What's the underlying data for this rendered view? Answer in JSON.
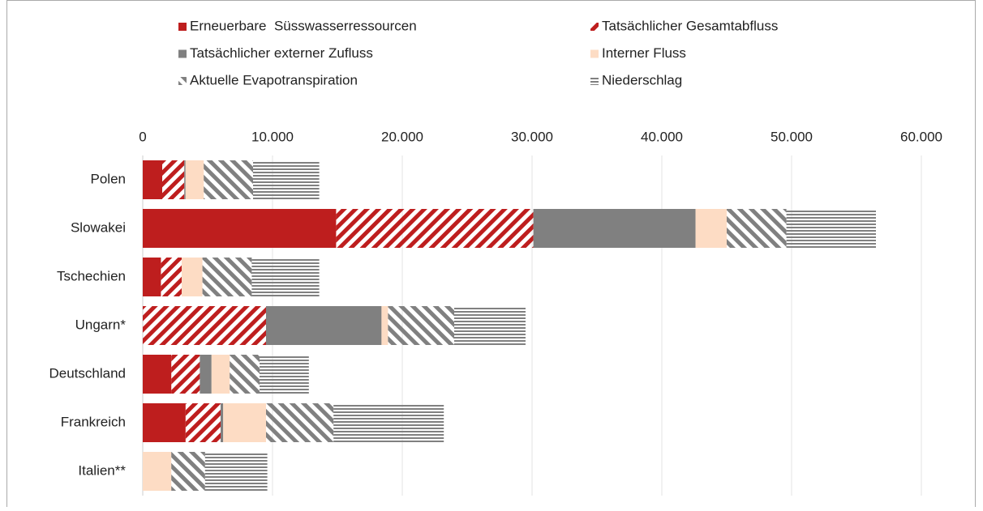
{
  "chart_data": {
    "type": "stacked-barh",
    "categories": [
      "Polen",
      "Slowakei",
      "Tschechien",
      "Ungarn*",
      "Deutschland",
      "Frankreich",
      "Italien**"
    ],
    "series": [
      {
        "name": "Erneuerbare  Süsswasserressourcen",
        "color": "#be1e1e",
        "pattern": "solid",
        "values": [
          1500,
          14900,
          1400,
          0,
          2200,
          3300,
          0
        ]
      },
      {
        "name": "Tatsächlicher Gesamtabfluss",
        "color": "#be1e1e",
        "pattern": "diagonal-up",
        "values": [
          1700,
          15200,
          1600,
          9500,
          2200,
          2700,
          0
        ]
      },
      {
        "name": "Tatsächlicher externer Zufluss",
        "color": "#808080",
        "pattern": "solid",
        "values": [
          100,
          12500,
          0,
          8900,
          900,
          200,
          0
        ]
      },
      {
        "name": "Interner Fluss",
        "color": "#fddcc4",
        "pattern": "solid",
        "values": [
          1400,
          2400,
          1600,
          500,
          1400,
          3300,
          2200
        ]
      },
      {
        "name": "Aktuelle Evapotranspiration",
        "color": "#808080",
        "pattern": "diagonal-down",
        "values": [
          3800,
          4600,
          3800,
          5100,
          2300,
          5200,
          2600
        ]
      },
      {
        "name": "Niederschlag",
        "color": "#808080",
        "pattern": "horizontal",
        "values": [
          5100,
          6900,
          5200,
          5500,
          3800,
          8500,
          4800
        ]
      }
    ],
    "xlim": [
      0,
      60000
    ],
    "xticks": [
      0,
      {
        "value": 10000,
        "label": "10.000"
      },
      {
        "value": 20000,
        "label": "20.000"
      },
      {
        "value": 30000,
        "label": "30.000"
      },
      {
        "value": 40000,
        "label": "40.000"
      },
      {
        "value": 50000,
        "label": "50.000"
      },
      {
        "value": 60000,
        "label": "60.000"
      }
    ],
    "grid": true,
    "legend": "top"
  }
}
